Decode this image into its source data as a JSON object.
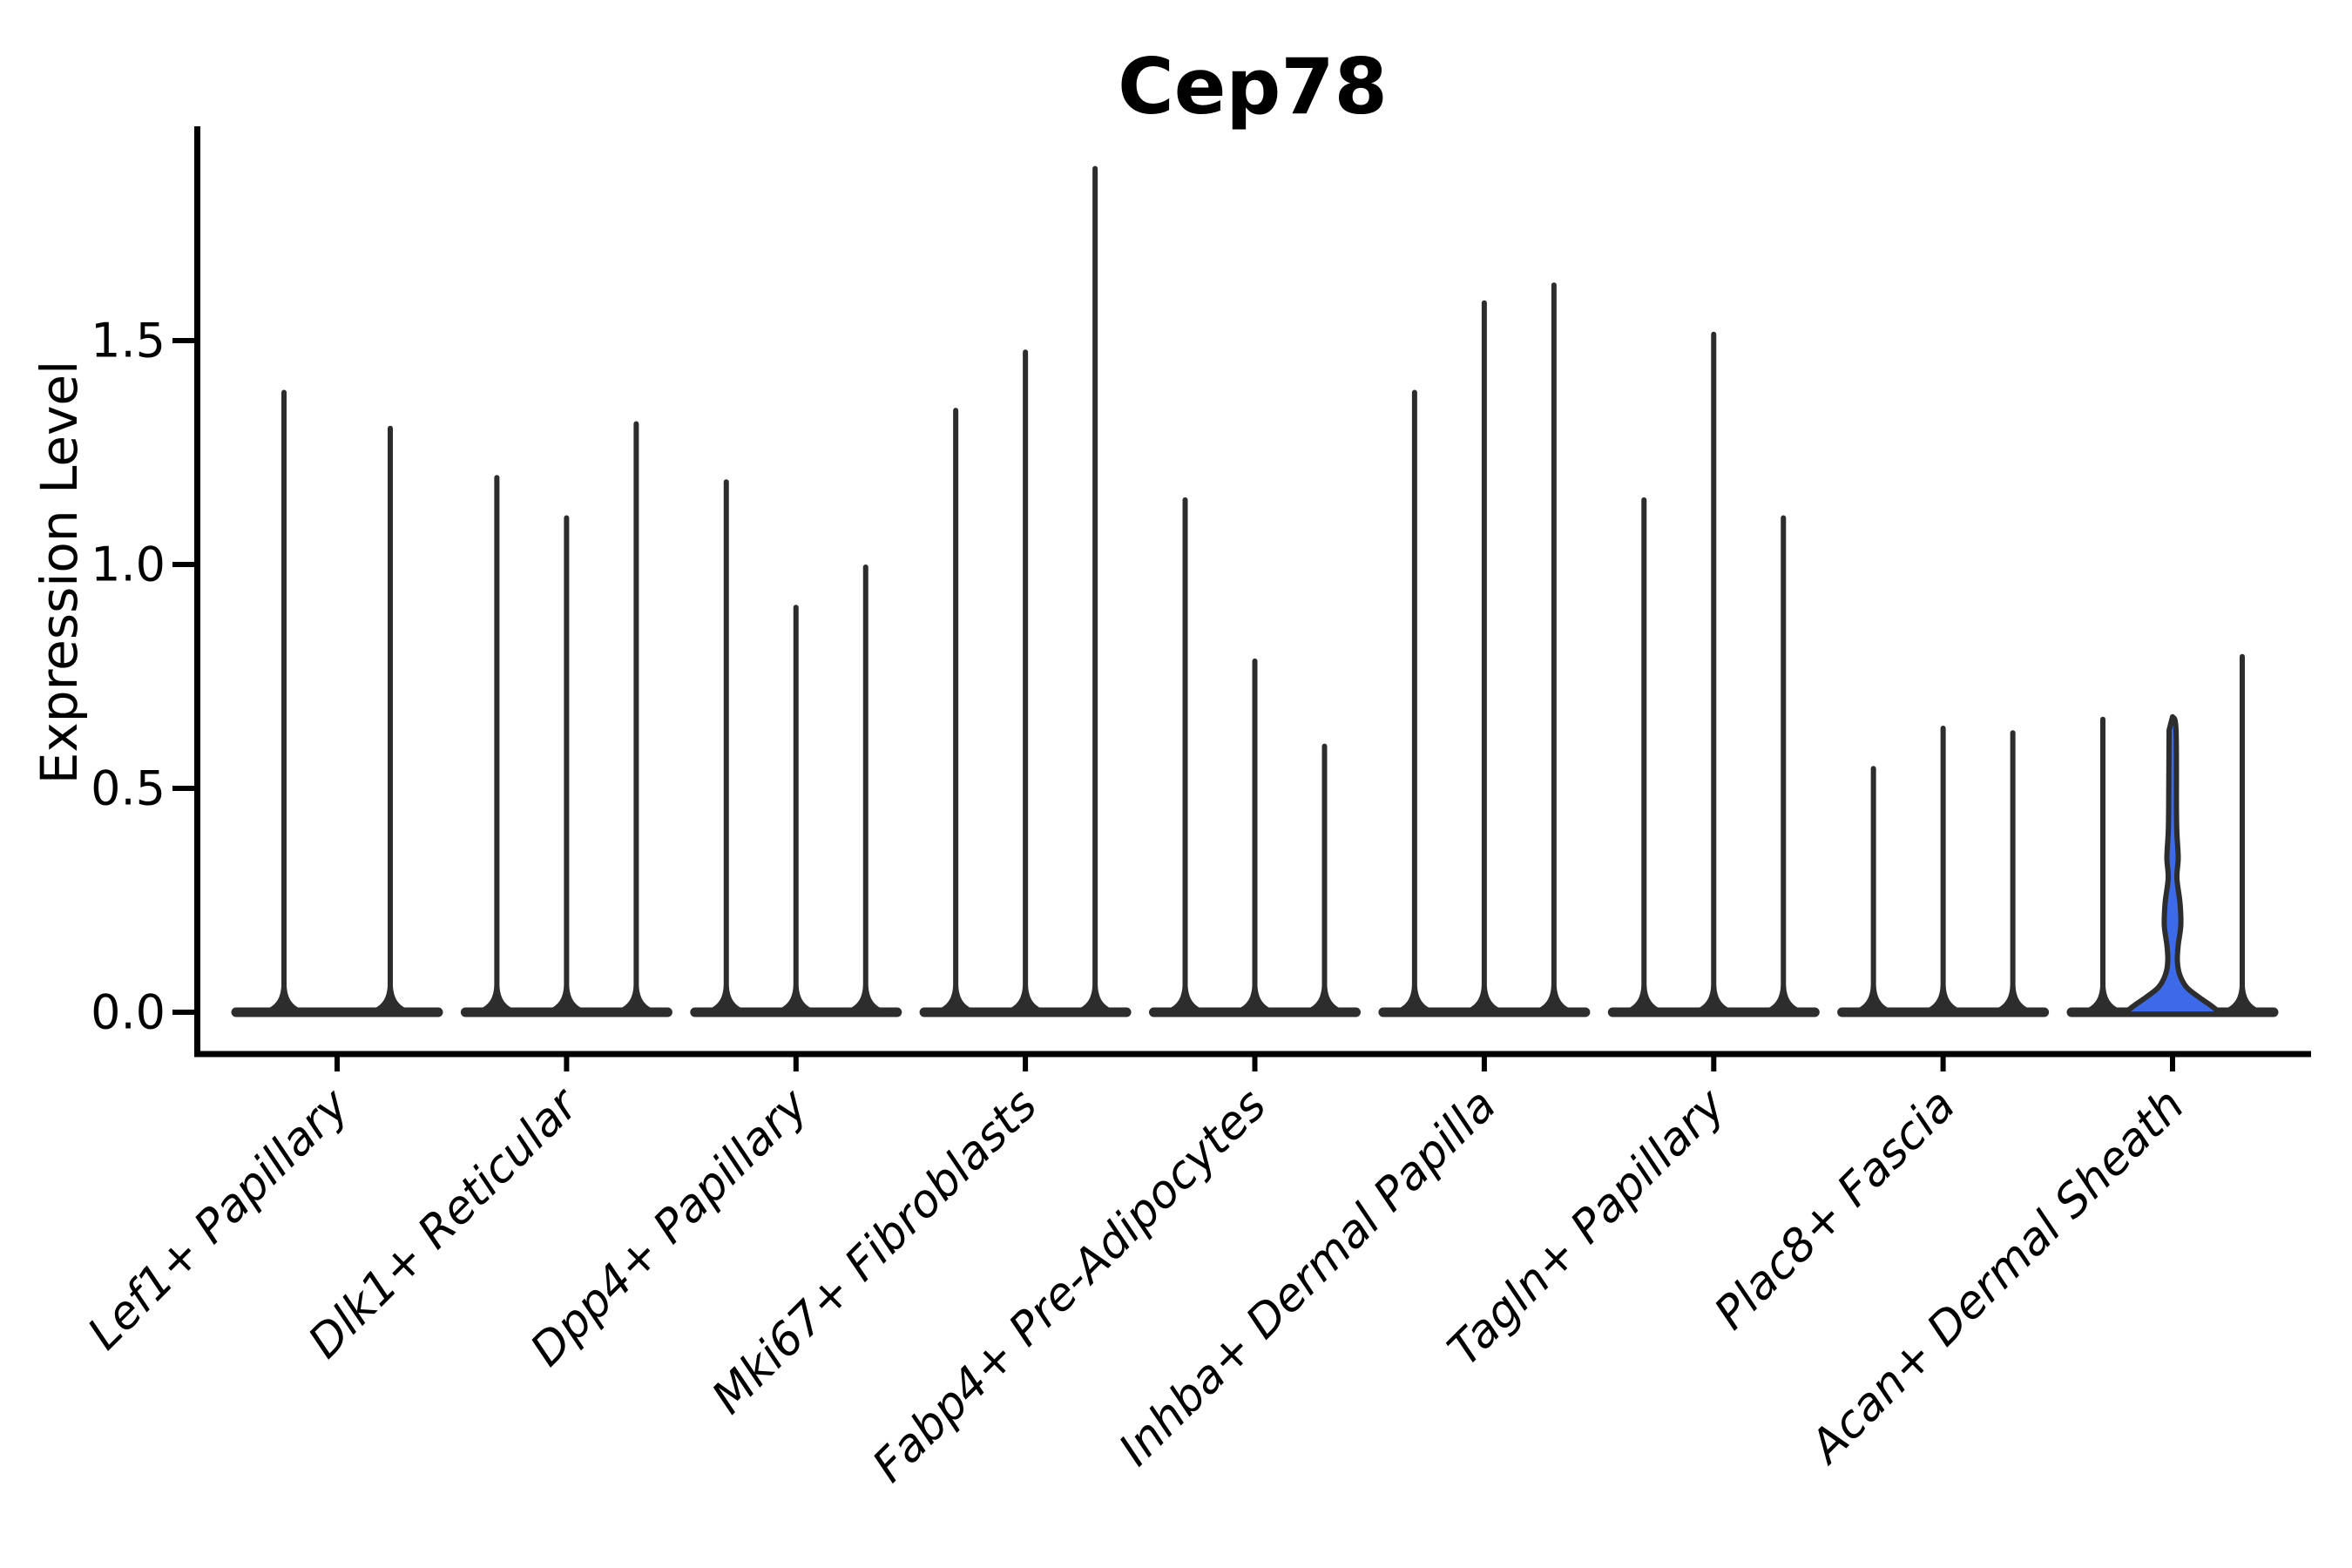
{
  "title": "Cep78",
  "y_axis": {
    "label": "Expression Level",
    "ticks": [
      "1.5",
      "1.0",
      "0.5",
      "0.0"
    ],
    "tick_values": [
      1.5,
      1.0,
      0.5,
      0.0
    ]
  },
  "x_axis": {
    "categories": [
      "Lef1+ Papillary",
      "Dlk1+ Reticular",
      "Dpp4+ Papillary",
      "Mki67+ Fibroblasts",
      "Fabp4+ Pre-Adipocytes",
      "Inhba+ Dermal Papilla",
      "Tagln+ Papillary",
      "Plac8+ Fascia",
      "Acan+ Dermal Sheath"
    ]
  },
  "chart_data": {
    "type": "violin",
    "title": "Cep78",
    "xlabel": "",
    "ylabel": "Expression Level",
    "ylim": [
      0,
      1.95
    ],
    "yticks": [
      0.0,
      0.5,
      1.0,
      1.5
    ],
    "grid": false,
    "legend": "none",
    "categories": [
      "Lef1+ Papillary",
      "Dlk1+ Reticular",
      "Dpp4+ Papillary",
      "Mki67+ Fibroblasts",
      "Fabp4+ Pre-Adipocytes",
      "Inhba+ Dermal Papilla",
      "Tagln+ Papillary",
      "Plac8+ Fascia",
      "Acan+ Dermal Sheath"
    ],
    "description": "Violin plot of Cep78 expression; nearly all cells are zero so violins collapse to a baseline bar with thin spikes up to each violin max. Only the middle violin of Acan+ Dermal Sheath has a visible filled density body.",
    "groups": [
      {
        "category": "Lef1+ Papillary",
        "violins": [
          {
            "max": 1.39
          },
          {
            "max": 1.31
          }
        ]
      },
      {
        "category": "Dlk1+ Reticular",
        "violins": [
          {
            "max": 1.2
          },
          {
            "max": 1.11
          },
          {
            "max": 1.32
          }
        ]
      },
      {
        "category": "Dpp4+ Papillary",
        "violins": [
          {
            "max": 1.19
          },
          {
            "max": 0.91
          },
          {
            "max": 1.0
          }
        ]
      },
      {
        "category": "Mki67+ Fibroblasts",
        "violins": [
          {
            "max": 1.35
          },
          {
            "max": 1.48
          },
          {
            "max": 1.89
          }
        ]
      },
      {
        "category": "Fabp4+ Pre-Adipocytes",
        "violins": [
          {
            "max": 1.15
          },
          {
            "max": 0.79
          },
          {
            "max": 0.6
          }
        ]
      },
      {
        "category": "Inhba+ Dermal Papilla",
        "violins": [
          {
            "max": 1.39
          },
          {
            "max": 1.59
          },
          {
            "max": 1.63
          }
        ]
      },
      {
        "category": "Tagln+ Papillary",
        "violins": [
          {
            "max": 1.15
          },
          {
            "max": 1.52
          },
          {
            "max": 1.11
          }
        ]
      },
      {
        "category": "Plac8+ Fascia",
        "violins": [
          {
            "max": 0.55
          },
          {
            "max": 0.64
          },
          {
            "max": 0.63
          }
        ]
      },
      {
        "category": "Acan+ Dermal Sheath",
        "violins": [
          {
            "max": 0.66
          },
          {
            "max": 0.66,
            "filled": true,
            "profile": [
              [
                0.66,
                0
              ],
              [
                0.63,
                4
              ],
              [
                0.45,
                4.5
              ],
              [
                0.4,
                5
              ],
              [
                0.345,
                6.5
              ],
              [
                0.3,
                5
              ],
              [
                0.245,
                8.5
              ],
              [
                0.195,
                9.5
              ],
              [
                0.15,
                6.5
              ],
              [
                0.115,
                5.5
              ],
              [
                0.085,
                8
              ],
              [
                0.056,
                16
              ],
              [
                0.034,
                30
              ],
              [
                0.015,
                44
              ],
              [
                0.004,
                51
              ],
              [
                -0.004,
                53
              ]
            ]
          },
          {
            "max": 0.8
          }
        ]
      }
    ],
    "colors": {
      "violin_stroke": "#2d2d2d",
      "highlight_fill": "#3c6ae8",
      "axis": "#000000",
      "background": "#ffffff"
    }
  }
}
